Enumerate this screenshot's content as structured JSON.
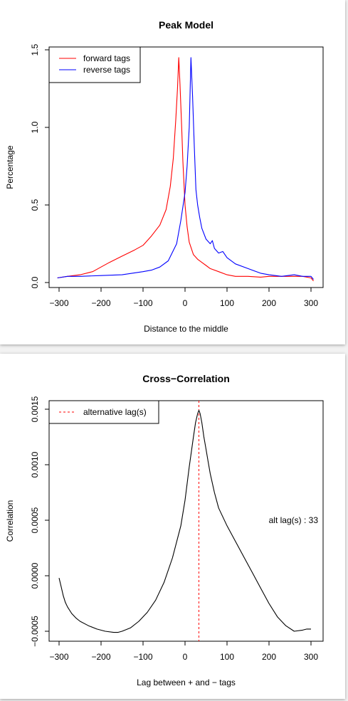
{
  "chart_data": [
    {
      "type": "line",
      "title": "Peak Model",
      "xlabel": "Distance to the middle",
      "ylabel": "Percentage",
      "xlim": [
        -300,
        300
      ],
      "ylim": [
        0,
        1.5
      ],
      "xticks": [
        "-300",
        "-200",
        "-100",
        "0",
        "100",
        "200",
        "300"
      ],
      "yticks": [
        "0.0",
        "0.5",
        "1.0",
        "1.5"
      ],
      "legend": "top-left",
      "series": [
        {
          "name": "forward tags",
          "color": "#ff0000",
          "x": [
            -304,
            -280,
            -250,
            -220,
            -200,
            -180,
            -150,
            -120,
            -100,
            -80,
            -60,
            -45,
            -35,
            -28,
            -22,
            -18,
            -15,
            -12,
            -8,
            -5,
            0,
            5,
            10,
            20,
            30,
            40,
            50,
            60,
            80,
            100,
            120,
            150,
            180,
            200,
            230,
            260,
            280,
            300,
            306
          ],
          "y": [
            0.03,
            0.04,
            0.05,
            0.07,
            0.1,
            0.13,
            0.17,
            0.21,
            0.24,
            0.3,
            0.37,
            0.47,
            0.62,
            0.8,
            1.05,
            1.25,
            1.45,
            1.28,
            1.0,
            0.78,
            0.5,
            0.36,
            0.26,
            0.18,
            0.15,
            0.13,
            0.11,
            0.09,
            0.07,
            0.05,
            0.04,
            0.04,
            0.035,
            0.04,
            0.04,
            0.04,
            0.04,
            0.03,
            0.01
          ]
        },
        {
          "name": "reverse tags",
          "color": "#0000ff",
          "x": [
            -304,
            -280,
            -250,
            -200,
            -150,
            -100,
            -80,
            -60,
            -40,
            -20,
            -10,
            0,
            5,
            10,
            14,
            18,
            22,
            26,
            30,
            35,
            40,
            50,
            60,
            65,
            70,
            80,
            90,
            100,
            120,
            150,
            180,
            200,
            230,
            260,
            280,
            300,
            306
          ],
          "y": [
            0.03,
            0.04,
            0.04,
            0.045,
            0.05,
            0.07,
            0.08,
            0.1,
            0.14,
            0.25,
            0.4,
            0.58,
            0.75,
            1.0,
            1.45,
            1.2,
            0.88,
            0.6,
            0.5,
            0.42,
            0.35,
            0.28,
            0.25,
            0.27,
            0.22,
            0.19,
            0.2,
            0.16,
            0.12,
            0.09,
            0.06,
            0.05,
            0.04,
            0.05,
            0.04,
            0.04,
            0.02
          ]
        }
      ]
    },
    {
      "type": "line",
      "title": "Cross−Correlation",
      "xlabel": "Lag between + and − tags",
      "ylabel": "Correlation",
      "xlim": [
        -300,
        300
      ],
      "ylim": [
        -0.0005,
        0.0015
      ],
      "xticks": [
        "-300",
        "-200",
        "-100",
        "0",
        "100",
        "200",
        "300"
      ],
      "yticks": [
        "−0.0005",
        "0.0000",
        "0.0005",
        "0.0010",
        "0.0015"
      ],
      "legend": "top-left",
      "legend_entries": [
        {
          "label": "alternative lag(s)",
          "color": "#ff0000",
          "style": "dashed"
        }
      ],
      "annotation": "alt lag(s) : 33",
      "vline_x": 33,
      "series": [
        {
          "color": "#000000",
          "x": [
            -300,
            -295,
            -290,
            -285,
            -280,
            -270,
            -260,
            -250,
            -230,
            -210,
            -190,
            -170,
            -160,
            -150,
            -130,
            -110,
            -90,
            -70,
            -50,
            -30,
            -10,
            0,
            10,
            20,
            25,
            30,
            33,
            36,
            40,
            45,
            50,
            55,
            60,
            70,
            80,
            100,
            120,
            140,
            160,
            180,
            200,
            220,
            240,
            260,
            280,
            290,
            300
          ],
          "y": [
            -2e-05,
            -0.0001,
            -0.00018,
            -0.00024,
            -0.00028,
            -0.00034,
            -0.00038,
            -0.00041,
            -0.00045,
            -0.00048,
            -0.0005,
            -0.00051,
            -0.00051,
            -0.0005,
            -0.00047,
            -0.00041,
            -0.00033,
            -0.00022,
            -6e-05,
            0.00016,
            0.00045,
            0.00068,
            0.00098,
            0.00125,
            0.00138,
            0.00146,
            0.00149,
            0.00146,
            0.00138,
            0.00125,
            0.00114,
            0.00103,
            0.00092,
            0.00075,
            0.00061,
            0.00045,
            0.00031,
            0.00017,
            3e-05,
            -0.00011,
            -0.00025,
            -0.00037,
            -0.00045,
            -0.0005,
            -0.00049,
            -0.00048,
            -0.00048
          ]
        }
      ]
    }
  ]
}
